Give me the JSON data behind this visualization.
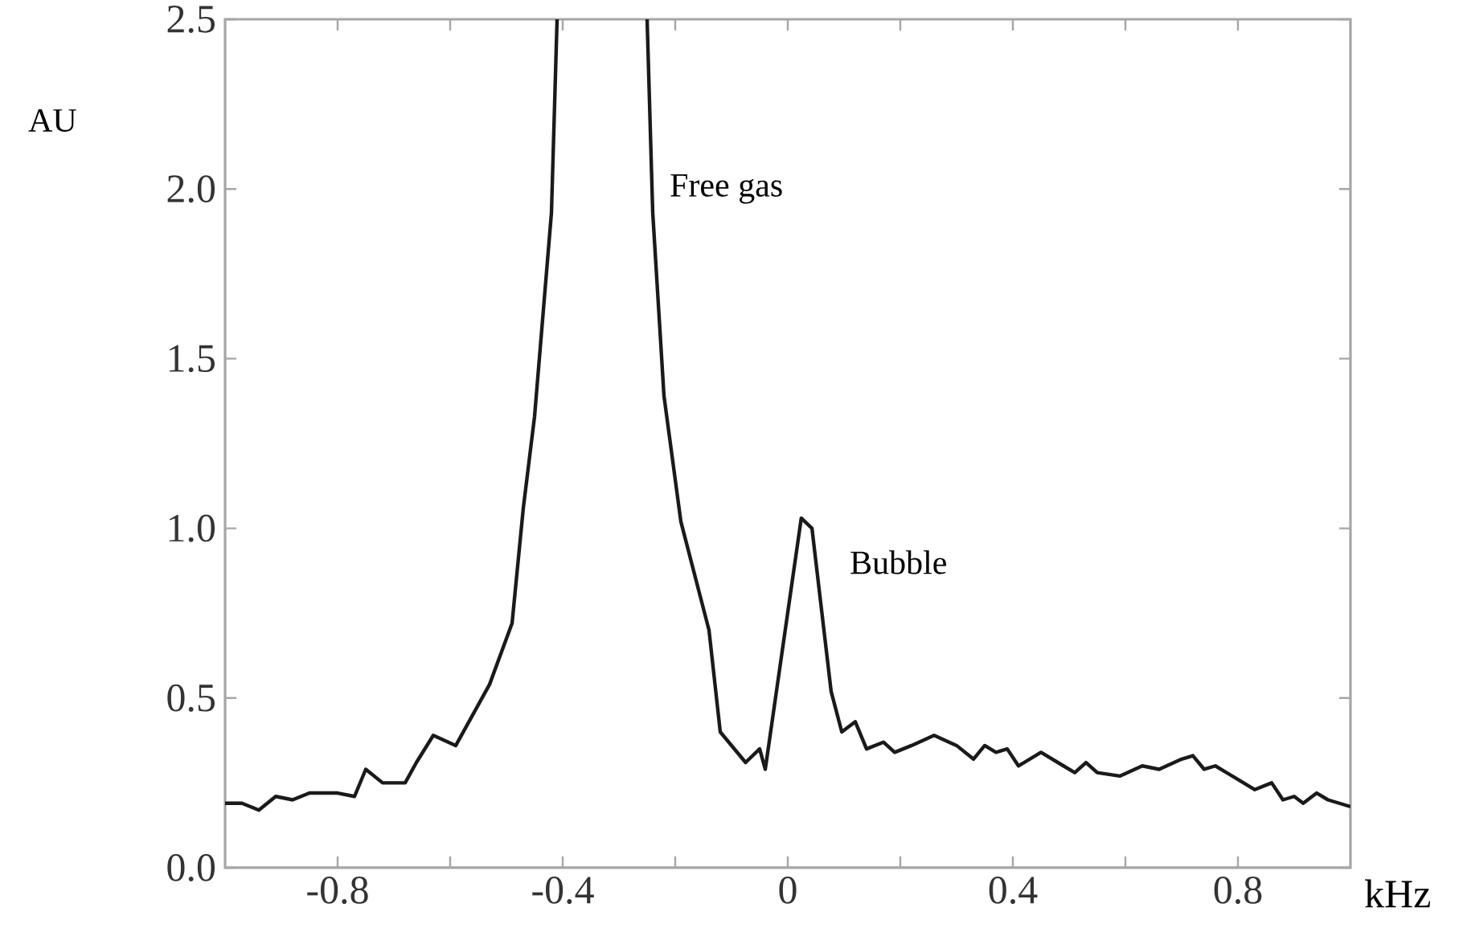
{
  "chart_data": {
    "type": "line",
    "xlabel": "kHz",
    "ylabel": "AU",
    "x": [
      -1.0,
      -0.97,
      -0.94,
      -0.91,
      -0.88,
      -0.85,
      -0.8,
      -0.77,
      -0.75,
      -0.72,
      -0.68,
      -0.66,
      -0.63,
      -0.59,
      -0.53,
      -0.49,
      -0.47,
      -0.45,
      -0.42,
      -0.41,
      -0.33,
      -0.25,
      -0.24,
      -0.22,
      -0.19,
      -0.14,
      -0.12,
      -0.075,
      -0.05,
      -0.04,
      0.024,
      0.043,
      0.077,
      0.096,
      0.12,
      0.14,
      0.17,
      0.19,
      0.22,
      0.26,
      0.3,
      0.33,
      0.35,
      0.37,
      0.39,
      0.41,
      0.45,
      0.49,
      0.51,
      0.53,
      0.55,
      0.59,
      0.63,
      0.66,
      0.7,
      0.72,
      0.74,
      0.76,
      0.8,
      0.83,
      0.86,
      0.88,
      0.9,
      0.916,
      0.94,
      0.96,
      1.0
    ],
    "values": [
      0.19,
      0.19,
      0.17,
      0.21,
      0.2,
      0.22,
      0.22,
      0.21,
      0.29,
      0.25,
      0.25,
      0.31,
      0.39,
      0.36,
      0.54,
      0.72,
      1.06,
      1.33,
      1.93,
      2.5,
      null,
      2.5,
      1.93,
      1.39,
      1.02,
      0.7,
      0.4,
      0.31,
      0.35,
      0.29,
      1.03,
      1.0,
      0.52,
      0.4,
      0.43,
      0.35,
      0.37,
      0.34,
      0.36,
      0.39,
      0.36,
      0.32,
      0.36,
      0.34,
      0.35,
      0.3,
      0.34,
      0.3,
      0.28,
      0.31,
      0.28,
      0.27,
      0.3,
      0.29,
      0.32,
      0.33,
      0.29,
      0.3,
      0.26,
      0.23,
      0.25,
      0.2,
      0.21,
      0.19,
      0.22,
      0.2,
      0.18
    ],
    "color": "#1a1a1a",
    "xlim": [
      -1.0,
      1.0
    ],
    "ylim": [
      0,
      2.5
    ],
    "xticks": [
      {
        "value": -0.8,
        "label": "-0.8"
      },
      {
        "value": -0.6,
        "label": null
      },
      {
        "value": -0.4,
        "label": "-0.4"
      },
      {
        "value": -0.2,
        "label": null
      },
      0,
      {
        "value": 0.2,
        "label": null
      },
      {
        "value": 0.4,
        "label": "0.4"
      },
      {
        "value": 0.6,
        "label": null
      },
      {
        "value": 0.8,
        "label": "0.8"
      }
    ],
    "yticks": [
      {
        "value": 0,
        "label": "0.0"
      },
      {
        "value": 0.5,
        "label": "0.5"
      },
      {
        "value": 1.0,
        "label": "1.0"
      },
      {
        "value": 1.5,
        "label": "1.5"
      },
      {
        "value": 2.0,
        "label": "2.0"
      },
      {
        "value": 2.5,
        "label": "2.5"
      }
    ],
    "annotations": [
      "Free gas",
      "Bubble"
    ],
    "marker": "none",
    "line_style": "solid",
    "grid": false
  }
}
